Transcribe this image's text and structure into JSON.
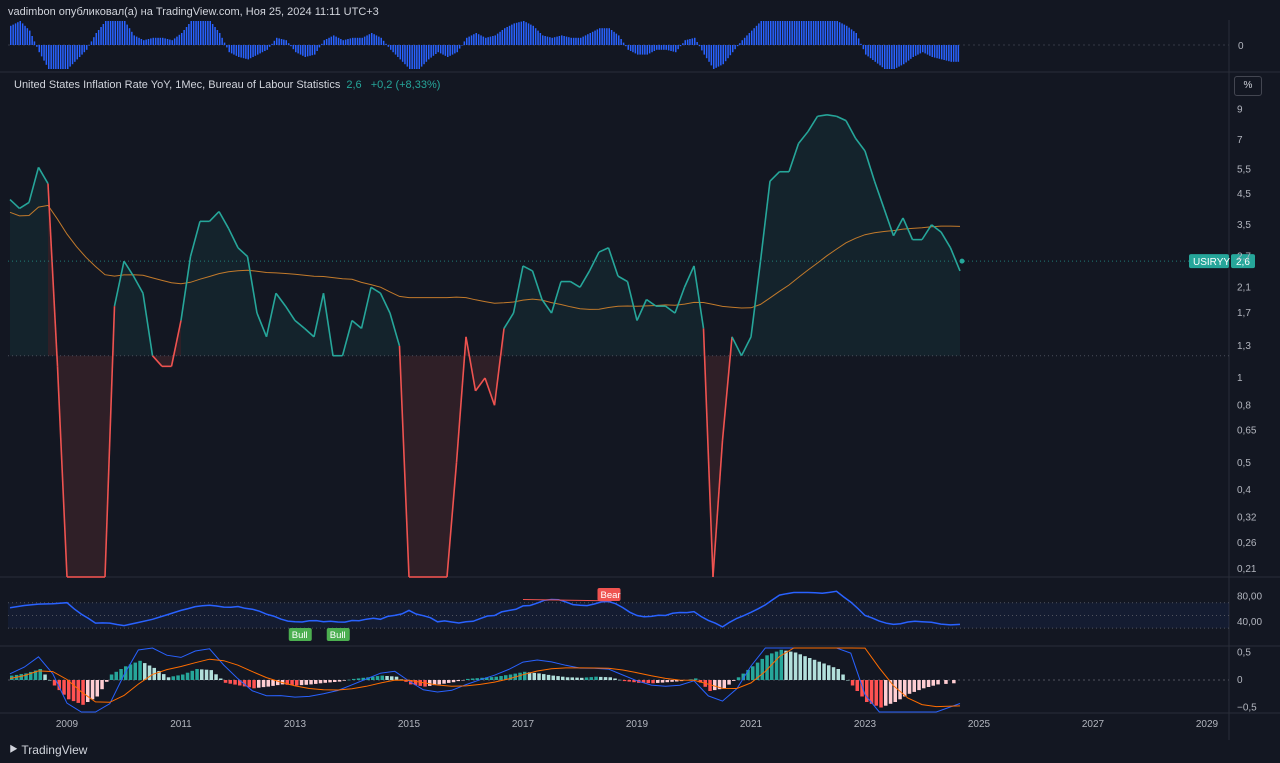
{
  "header": {
    "published": "vadimbon опубликовал(а) на TradingView.com, Ноя 25, 2024 11:11 UTC+3"
  },
  "legend": {
    "title": "United States Inflation Rate YoY, 1Mес, Bureau of Labour Statistics",
    "value": "2,6",
    "change": "+0,2 (+8,33%)"
  },
  "scale_button": "%",
  "symbol_tag": "USIRYY",
  "last_value": "2,6",
  "bull_label": "Bull",
  "bear_label": "Bear",
  "brand": "TradingView",
  "colors": {
    "bg": "#131722",
    "up": "#26a69a",
    "down": "#ef5350",
    "sma": "#c27a2b",
    "rsi": "#2962ff",
    "volume": "#2962ff"
  },
  "chart_data": [
    {
      "type": "bar",
      "panel": "top-oscillator",
      "y_ticks": [
        "0"
      ],
      "x": [
        "2008-01",
        "2008-03",
        "2008-05",
        "2008-07",
        "2008-09",
        "2008-11",
        "2009-01",
        "2009-03",
        "2009-05",
        "2009-07",
        "2009-09",
        "2009-11",
        "2010-01",
        "2010-03",
        "2010-05",
        "2010-07",
        "2010-09",
        "2010-11",
        "2011-01",
        "2011-03",
        "2011-05",
        "2011-07",
        "2011-09",
        "2011-11",
        "2012-01",
        "2012-03",
        "2012-05",
        "2012-07",
        "2012-09",
        "2012-11",
        "2013-01",
        "2013-03",
        "2013-05",
        "2013-07",
        "2013-09",
        "2013-11",
        "2014-01",
        "2014-03",
        "2014-05",
        "2014-07",
        "2014-09",
        "2014-11",
        "2015-01",
        "2015-03",
        "2015-05",
        "2015-07",
        "2015-09",
        "2015-11",
        "2016-01",
        "2016-03",
        "2016-05",
        "2016-07",
        "2016-09",
        "2016-11",
        "2017-01",
        "2017-03",
        "2017-05",
        "2017-07",
        "2017-09",
        "2017-11",
        "2018-01",
        "2018-03",
        "2018-05",
        "2018-07",
        "2018-09",
        "2018-11",
        "2019-01",
        "2019-03",
        "2019-05",
        "2019-07",
        "2019-09",
        "2019-11",
        "2020-01",
        "2020-03",
        "2020-05",
        "2020-07",
        "2020-09",
        "2020-11",
        "2021-01",
        "2021-03",
        "2021-05",
        "2021-07",
        "2021-09",
        "2021-11",
        "2022-01",
        "2022-03",
        "2022-05",
        "2022-07",
        "2022-09",
        "2022-11",
        "2023-01",
        "2023-03",
        "2023-05",
        "2023-07",
        "2023-09",
        "2023-11",
        "2024-01",
        "2024-03",
        "2024-05",
        "2024-07",
        "2024-09"
      ],
      "values": [
        0.8,
        1,
        0.6,
        -0.3,
        -1,
        -1,
        -1,
        -0.6,
        -0.2,
        0.5,
        1,
        1,
        1,
        0.4,
        0.2,
        0.3,
        0.3,
        0.2,
        0.5,
        1,
        1,
        1,
        0.5,
        -0.3,
        -0.5,
        -0.6,
        -0.4,
        -0.2,
        0.3,
        0.2,
        -0.3,
        -0.5,
        -0.4,
        0.2,
        0.4,
        0.2,
        0.3,
        0.3,
        0.5,
        0.3,
        -0.2,
        -0.6,
        -1,
        -1,
        -0.6,
        -0.3,
        -0.5,
        -0.3,
        0.3,
        0.5,
        0.3,
        0.4,
        0.7,
        0.9,
        1,
        0.8,
        0.4,
        0.3,
        0.4,
        0.3,
        0.3,
        0.5,
        0.7,
        0.7,
        0.4,
        -0.2,
        -0.4,
        -0.4,
        -0.2,
        -0.2,
        -0.3,
        0.2,
        0.3,
        -0.4,
        -1,
        -0.8,
        -0.3,
        0.2,
        0.6,
        1,
        1,
        1,
        1,
        1,
        1,
        1,
        1,
        1,
        0.8,
        0.5,
        -0.4,
        -0.7,
        -1,
        -1,
        -0.8,
        -0.5,
        -0.3,
        -0.5,
        -0.6,
        -0.7,
        -0.7
      ]
    },
    {
      "type": "area",
      "panel": "main",
      "series_name": "USIRYY",
      "y_scale": "log",
      "y_ticks": [
        "9",
        "7",
        "5,5",
        "4,5",
        "3,5",
        "2,7",
        "2,1",
        "1,7",
        "1,3",
        "1",
        "0,8",
        "0,65",
        "0,5",
        "0,4",
        "0,32",
        "0,26",
        "0,21"
      ],
      "x_ticks": [
        "2009",
        "2011",
        "2013",
        "2015",
        "2017",
        "2019",
        "2021",
        "2023",
        "2025",
        "2027",
        "2029"
      ],
      "x": [
        "2008-01",
        "2008-03",
        "2008-05",
        "2008-07",
        "2008-09",
        "2008-11",
        "2009-01",
        "2009-03",
        "2009-05",
        "2009-07",
        "2009-09",
        "2009-11",
        "2010-01",
        "2010-03",
        "2010-05",
        "2010-07",
        "2010-09",
        "2010-11",
        "2011-01",
        "2011-03",
        "2011-05",
        "2011-07",
        "2011-09",
        "2011-11",
        "2012-01",
        "2012-03",
        "2012-05",
        "2012-07",
        "2012-09",
        "2012-11",
        "2013-01",
        "2013-03",
        "2013-05",
        "2013-07",
        "2013-09",
        "2013-11",
        "2014-01",
        "2014-03",
        "2014-05",
        "2014-07",
        "2014-09",
        "2014-11",
        "2015-01",
        "2015-03",
        "2015-05",
        "2015-07",
        "2015-09",
        "2015-11",
        "2016-01",
        "2016-03",
        "2016-05",
        "2016-07",
        "2016-09",
        "2016-11",
        "2017-01",
        "2017-03",
        "2017-05",
        "2017-07",
        "2017-09",
        "2017-11",
        "2018-01",
        "2018-03",
        "2018-05",
        "2018-07",
        "2018-09",
        "2018-11",
        "2019-01",
        "2019-03",
        "2019-05",
        "2019-07",
        "2019-09",
        "2019-11",
        "2020-01",
        "2020-03",
        "2020-05",
        "2020-07",
        "2020-09",
        "2020-11",
        "2021-01",
        "2021-03",
        "2021-05",
        "2021-07",
        "2021-09",
        "2021-11",
        "2022-01",
        "2022-03",
        "2022-05",
        "2022-07",
        "2022-09",
        "2022-11",
        "2023-01",
        "2023-03",
        "2023-05",
        "2023-07",
        "2023-09",
        "2023-11",
        "2024-01",
        "2024-03",
        "2024-05",
        "2024-07",
        "2024-09"
      ],
      "values": [
        4.3,
        4,
        4.2,
        5.6,
        4.9,
        1.1,
        0.1,
        0.1,
        0.1,
        0.1,
        0.1,
        1.8,
        2.6,
        2.3,
        2,
        1.2,
        1.1,
        1.1,
        1.6,
        2.7,
        3.6,
        3.6,
        3.9,
        3.4,
        2.9,
        2.7,
        1.7,
        1.4,
        2,
        1.8,
        1.6,
        1.5,
        1.4,
        2,
        1.2,
        1.2,
        1.6,
        1.5,
        2.1,
        2,
        1.7,
        1.3,
        0.1,
        0.1,
        0.1,
        0.1,
        0.1,
        0.5,
        1.4,
        0.9,
        1,
        0.8,
        1.5,
        1.7,
        2.5,
        2.4,
        1.9,
        1.7,
        2.2,
        2.2,
        2.1,
        2.4,
        2.8,
        2.9,
        2.3,
        2.2,
        1.6,
        1.9,
        1.8,
        1.8,
        1.7,
        2.1,
        2.5,
        1.5,
        0.1,
        0.6,
        1.4,
        1.2,
        1.4,
        2.6,
        5,
        5.4,
        5.4,
        6.8,
        7.5,
        8.5,
        8.6,
        8.5,
        8.2,
        7.1,
        6.4,
        5,
        4,
        3.2,
        3.7,
        3.1,
        3.1,
        3.5,
        3.3,
        2.9,
        2.4
      ],
      "last_value": 2.6,
      "annotations": [
        "USIRYY",
        "2,6"
      ]
    },
    {
      "type": "line",
      "panel": "rsi",
      "y_ticks": [
        "80,00",
        "40,00"
      ],
      "x": [
        "2008-01",
        "2009-01",
        "2009-07",
        "2010-01",
        "2011-01",
        "2011-07",
        "2012-01",
        "2012-07",
        "2013-01",
        "2013-07",
        "2014-01",
        "2014-07",
        "2015-01",
        "2015-07",
        "2016-01",
        "2016-07",
        "2017-01",
        "2017-07",
        "2018-01",
        "2018-07",
        "2019-01",
        "2019-07",
        "2020-01",
        "2020-07",
        "2021-01",
        "2021-07",
        "2022-01",
        "2022-07",
        "2023-01",
        "2023-07",
        "2024-01",
        "2024-09"
      ],
      "values": [
        62,
        70,
        38,
        34,
        58,
        66,
        64,
        52,
        40,
        40,
        42,
        44,
        58,
        40,
        40,
        50,
        65,
        75,
        66,
        72,
        50,
        50,
        56,
        32,
        55,
        82,
        86,
        88,
        50,
        36,
        40,
        36
      ],
      "signals": [
        {
          "label": "Bull",
          "x": "2013-02"
        },
        {
          "label": "Bull",
          "x": "2013-10"
        },
        {
          "label": "Bear",
          "x": "2018-07"
        }
      ]
    },
    {
      "type": "bar",
      "panel": "macd",
      "y_ticks": [
        "0,5",
        "0",
        "−0,5"
      ],
      "x": [
        "2008-01",
        "2008-04",
        "2008-07",
        "2008-10",
        "2009-01",
        "2009-04",
        "2009-07",
        "2009-10",
        "2010-01",
        "2010-04",
        "2010-07",
        "2010-10",
        "2011-01",
        "2011-04",
        "2011-07",
        "2011-10",
        "2012-01",
        "2012-04",
        "2012-07",
        "2012-10",
        "2013-01",
        "2013-04",
        "2013-07",
        "2013-10",
        "2014-01",
        "2014-04",
        "2014-07",
        "2014-10",
        "2015-01",
        "2015-04",
        "2015-07",
        "2015-10",
        "2016-01",
        "2016-04",
        "2016-07",
        "2016-10",
        "2017-01",
        "2017-04",
        "2017-07",
        "2017-10",
        "2018-01",
        "2018-04",
        "2018-07",
        "2018-10",
        "2019-01",
        "2019-04",
        "2019-07",
        "2019-10",
        "2020-01",
        "2020-04",
        "2020-07",
        "2020-10",
        "2021-01",
        "2021-04",
        "2021-07",
        "2021-10",
        "2022-01",
        "2022-04",
        "2022-07",
        "2022-10",
        "2023-01",
        "2023-04",
        "2023-07",
        "2023-10",
        "2024-01",
        "2024-04",
        "2024-09"
      ],
      "values": [
        0.08,
        0.12,
        0.2,
        -0.1,
        -0.35,
        -0.45,
        -0.3,
        0.1,
        0.25,
        0.35,
        0.22,
        0.05,
        0.1,
        0.2,
        0.18,
        -0.05,
        -0.1,
        -0.15,
        -0.12,
        -0.08,
        -0.1,
        -0.08,
        -0.05,
        -0.03,
        0.02,
        0.05,
        0.08,
        0.06,
        -0.08,
        -0.12,
        -0.08,
        -0.04,
        0.02,
        0.04,
        0.06,
        0.1,
        0.15,
        0.12,
        0.08,
        0.05,
        0.04,
        0.06,
        0.05,
        -0.02,
        -0.05,
        -0.06,
        -0.04,
        -0.02,
        0.03,
        -0.2,
        -0.15,
        0.05,
        0.25,
        0.45,
        0.55,
        0.5,
        0.4,
        0.3,
        0.2,
        -0.1,
        -0.4,
        -0.5,
        -0.4,
        -0.25,
        -0.15,
        -0.08,
        -0.05
      ]
    }
  ]
}
